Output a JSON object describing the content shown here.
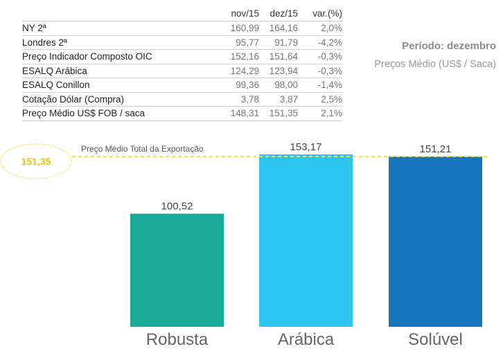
{
  "table": {
    "headers": [
      "",
      "nov/15",
      "dez/15",
      "var.(%)"
    ],
    "rows": [
      {
        "label": "NY 2ª",
        "nov": "160,99",
        "dez": "164,16",
        "var": "2,0%"
      },
      {
        "label": "Londres 2ª",
        "nov": "95,77",
        "dez": "91,79",
        "var": "-4,2%"
      },
      {
        "label": "Preço Indicador Composto OIC",
        "nov": "152,16",
        "dez": "151,64",
        "var": "-0,3%"
      },
      {
        "label": "ESALQ Arábica",
        "nov": "124,29",
        "dez": "123,94",
        "var": "-0,3%"
      },
      {
        "label": "ESALQ Conillon",
        "nov": "99,36",
        "dez": "98,00",
        "var": "-1,4%"
      },
      {
        "label": "Cotação Dólar (Compra)",
        "nov": "3,78",
        "dez": "3,87",
        "var": "2,5%"
      },
      {
        "label": "Preço Médio US$ FOB / saca",
        "nov": "148,31",
        "dez": "151,35",
        "var": "2,1%"
      }
    ]
  },
  "period_label": "Período: dezembro",
  "subtitle": "Preços Médio (US$ / Saca)",
  "chart_data": {
    "type": "bar",
    "categories": [
      "Robusta",
      "Arábica",
      "Solúvel"
    ],
    "values": [
      100.52,
      153.17,
      151.21
    ],
    "value_labels": [
      "100,52",
      "153,17",
      "151,21"
    ],
    "reference_line": {
      "value": 151.35,
      "label": "Preço Médio Total da Exportação",
      "value_label": "151,35"
    },
    "colors": [
      "#1aaa9a",
      "#2ec4f0",
      "#1775bd"
    ],
    "reference_color": "#f0e040",
    "ylim": [
      0,
      153.17
    ],
    "grid": false,
    "legend": "none"
  }
}
